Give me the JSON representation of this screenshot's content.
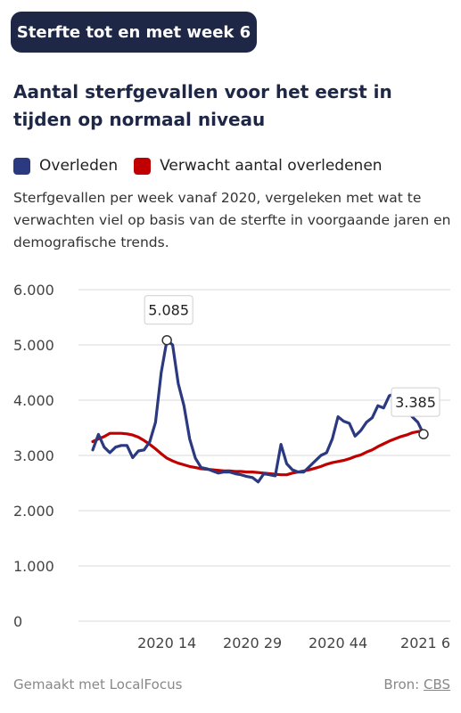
{
  "header": {
    "pill_label": "Sterfte tot en met week 6"
  },
  "headline": "Aantal sterfgevallen voor het eerst in tijden op normaal niveau",
  "subtitle": "Sterfgevallen per week vanaf 2020, vergeleken met wat te verwachten viel op basis van de sterfte in voorgaande jaren en demografische trends.",
  "colors": {
    "navy": "#2b3980",
    "red": "#c00000",
    "pill": "#1f2747",
    "grid": "#d9d9d9"
  },
  "chart_data": {
    "type": "line",
    "x_start": "2020 1",
    "x": [
      1,
      2,
      3,
      4,
      5,
      6,
      7,
      8,
      9,
      10,
      11,
      12,
      13,
      14,
      15,
      16,
      17,
      18,
      19,
      20,
      21,
      22,
      23,
      24,
      25,
      26,
      27,
      28,
      29,
      30,
      31,
      32,
      33,
      34,
      35,
      36,
      37,
      38,
      39,
      40,
      41,
      42,
      43,
      44,
      45,
      46,
      47,
      48,
      49,
      50,
      51,
      52,
      53,
      54,
      55,
      56,
      57,
      58,
      59
    ],
    "xticks": [
      {
        "x": 14,
        "label": "2020 14"
      },
      {
        "x": 29,
        "label": "2020 29"
      },
      {
        "x": 44,
        "label": "2020 44"
      },
      {
        "x": 59,
        "label": "2021 6"
      }
    ],
    "yticks": [
      {
        "y": 0,
        "label": "0"
      },
      {
        "y": 1000,
        "label": "1.000"
      },
      {
        "y": 2000,
        "label": "2.000"
      },
      {
        "y": 3000,
        "label": "3.000"
      },
      {
        "y": 4000,
        "label": "4.000"
      },
      {
        "y": 5000,
        "label": "5.000"
      },
      {
        "y": 6000,
        "label": "6.000"
      }
    ],
    "ylim": [
      0,
      6000
    ],
    "grid": true,
    "legend_position": "top-left",
    "series": [
      {
        "name": "Overleden",
        "color": "#2b3980",
        "values": [
          3100,
          3380,
          3150,
          3050,
          3150,
          3180,
          3180,
          2960,
          3080,
          3100,
          3250,
          3600,
          4500,
          5085,
          5000,
          4300,
          3900,
          3300,
          2950,
          2780,
          2760,
          2720,
          2680,
          2700,
          2700,
          2670,
          2650,
          2620,
          2600,
          2520,
          2670,
          2650,
          2630,
          3200,
          2850,
          2740,
          2700,
          2700,
          2800,
          2900,
          3000,
          3050,
          3300,
          3700,
          3620,
          3580,
          3350,
          3450,
          3600,
          3680,
          3900,
          3860,
          4080,
          4120,
          4030,
          3900,
          3700,
          3600,
          3385
        ]
      },
      {
        "name": "Verwacht aantal overledenen",
        "color": "#c00000",
        "values": [
          3250,
          3300,
          3340,
          3400,
          3400,
          3400,
          3390,
          3370,
          3330,
          3270,
          3200,
          3120,
          3030,
          2950,
          2900,
          2860,
          2830,
          2800,
          2780,
          2760,
          2750,
          2740,
          2730,
          2720,
          2720,
          2710,
          2710,
          2700,
          2700,
          2690,
          2680,
          2670,
          2660,
          2650,
          2650,
          2680,
          2700,
          2720,
          2740,
          2770,
          2800,
          2840,
          2870,
          2890,
          2910,
          2940,
          2980,
          3010,
          3060,
          3100,
          3160,
          3210,
          3260,
          3300,
          3340,
          3370,
          3410,
          3430,
          3445
        ]
      }
    ],
    "annotations": [
      {
        "x": 14,
        "y": 5085,
        "label": "5.085"
      },
      {
        "x": 59,
        "y": 3385,
        "label": "3.385"
      }
    ]
  },
  "footer": {
    "made_with": "Gemaakt met LocalFocus",
    "source_label": "Bron:",
    "source_name": "CBS"
  }
}
